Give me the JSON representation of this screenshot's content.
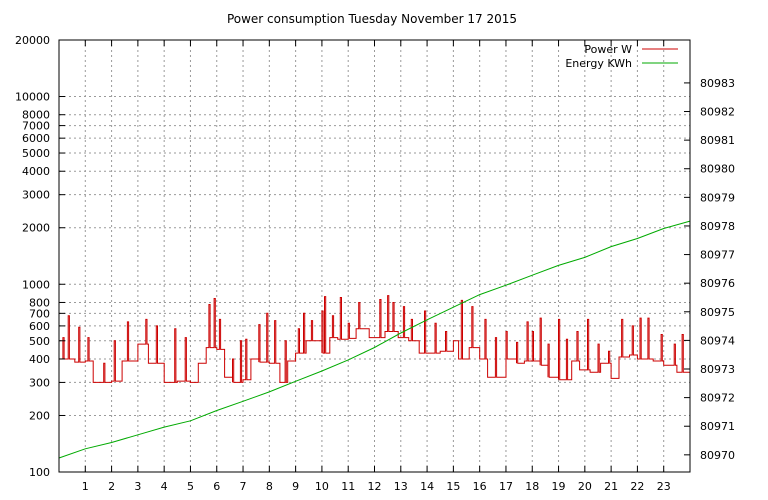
{
  "chart_data": {
    "type": "line",
    "title": "Power consumption Tuesday November 17 2015",
    "xlabel": "",
    "ylabel": "",
    "y2label": "",
    "xlim": [
      0,
      24
    ],
    "x_ticks": [
      1,
      2,
      3,
      4,
      5,
      6,
      7,
      8,
      9,
      10,
      11,
      12,
      13,
      14,
      15,
      16,
      17,
      18,
      19,
      20,
      21,
      22,
      23
    ],
    "ylim": [
      100,
      20000
    ],
    "yscale": "log",
    "y_ticks": [
      100,
      200,
      300,
      400,
      500,
      600,
      700,
      800,
      1000,
      2000,
      3000,
      4000,
      5000,
      6000,
      7000,
      8000,
      10000,
      20000
    ],
    "y2lim": [
      80969.4,
      80984.5
    ],
    "y2_ticks": [
      80970,
      80971,
      80972,
      80973,
      80974,
      80975,
      80976,
      80977,
      80978,
      80979,
      80980,
      80981,
      80982,
      80983
    ],
    "grid": true,
    "legend_position": "top-right",
    "series": [
      {
        "name": "Power W",
        "axis": "y",
        "color": "#cc0000",
        "base": [
          [
            0.0,
            400
          ],
          [
            0.6,
            385
          ],
          [
            1.0,
            390
          ],
          [
            1.3,
            300
          ],
          [
            2.0,
            305
          ],
          [
            2.4,
            390
          ],
          [
            3.0,
            480
          ],
          [
            3.4,
            380
          ],
          [
            4.0,
            300
          ],
          [
            4.5,
            305
          ],
          [
            5.0,
            300
          ],
          [
            5.3,
            380
          ],
          [
            5.6,
            460
          ],
          [
            6.0,
            450
          ],
          [
            6.3,
            320
          ],
          [
            6.6,
            300
          ],
          [
            7.0,
            310
          ],
          [
            7.3,
            400
          ],
          [
            7.6,
            385
          ],
          [
            8.0,
            380
          ],
          [
            8.4,
            300
          ],
          [
            8.7,
            390
          ],
          [
            9.0,
            430
          ],
          [
            9.4,
            500
          ],
          [
            10.0,
            430
          ],
          [
            10.3,
            520
          ],
          [
            10.6,
            510
          ],
          [
            11.0,
            515
          ],
          [
            11.3,
            580
          ],
          [
            11.8,
            520
          ],
          [
            12.4,
            560
          ],
          [
            12.9,
            520
          ],
          [
            13.3,
            500
          ],
          [
            13.7,
            430
          ],
          [
            14.5,
            440
          ],
          [
            15.0,
            500
          ],
          [
            15.2,
            400
          ],
          [
            15.6,
            460
          ],
          [
            16.0,
            400
          ],
          [
            16.3,
            320
          ],
          [
            16.7,
            320
          ],
          [
            17.0,
            400
          ],
          [
            17.4,
            380
          ],
          [
            17.7,
            390
          ],
          [
            18.3,
            370
          ],
          [
            18.6,
            320
          ],
          [
            19.0,
            310
          ],
          [
            19.5,
            390
          ],
          [
            19.8,
            350
          ],
          [
            20.2,
            340
          ],
          [
            20.6,
            380
          ],
          [
            21.0,
            315
          ],
          [
            21.3,
            410
          ],
          [
            21.7,
            420
          ],
          [
            22.0,
            400
          ],
          [
            22.6,
            390
          ],
          [
            23.0,
            370
          ],
          [
            23.5,
            340
          ],
          [
            24.0,
            330
          ]
        ],
        "spikes": [
          [
            0.15,
            520
          ],
          [
            0.35,
            680
          ],
          [
            0.75,
            590
          ],
          [
            1.1,
            520
          ],
          [
            1.7,
            380
          ],
          [
            2.1,
            500
          ],
          [
            2.6,
            630
          ],
          [
            3.3,
            650
          ],
          [
            3.7,
            600
          ],
          [
            4.4,
            580
          ],
          [
            4.8,
            520
          ],
          [
            5.7,
            780
          ],
          [
            5.9,
            840
          ],
          [
            6.1,
            650
          ],
          [
            6.6,
            400
          ],
          [
            6.9,
            500
          ],
          [
            7.1,
            510
          ],
          [
            7.6,
            610
          ],
          [
            7.9,
            700
          ],
          [
            8.2,
            640
          ],
          [
            8.6,
            500
          ],
          [
            9.1,
            580
          ],
          [
            9.3,
            700
          ],
          [
            9.6,
            640
          ],
          [
            10.0,
            720
          ],
          [
            10.1,
            860
          ],
          [
            10.4,
            680
          ],
          [
            10.7,
            850
          ],
          [
            11.0,
            620
          ],
          [
            11.4,
            800
          ],
          [
            12.2,
            830
          ],
          [
            12.5,
            870
          ],
          [
            12.7,
            800
          ],
          [
            13.1,
            760
          ],
          [
            13.4,
            650
          ],
          [
            13.9,
            720
          ],
          [
            14.3,
            620
          ],
          [
            14.7,
            560
          ],
          [
            15.3,
            820
          ],
          [
            15.7,
            760
          ],
          [
            16.2,
            650
          ],
          [
            16.6,
            520
          ],
          [
            17.0,
            560
          ],
          [
            17.4,
            490
          ],
          [
            17.8,
            630
          ],
          [
            18.0,
            560
          ],
          [
            18.3,
            660
          ],
          [
            18.6,
            480
          ],
          [
            19.0,
            650
          ],
          [
            19.3,
            510
          ],
          [
            19.7,
            560
          ],
          [
            20.1,
            650
          ],
          [
            20.5,
            480
          ],
          [
            20.9,
            440
          ],
          [
            21.4,
            650
          ],
          [
            21.8,
            600
          ],
          [
            22.1,
            660
          ],
          [
            22.4,
            660
          ],
          [
            22.9,
            540
          ],
          [
            23.4,
            480
          ],
          [
            23.7,
            540
          ]
        ]
      },
      {
        "name": "Energy KWh",
        "axis": "y2",
        "color": "#00aa00",
        "points": [
          [
            0,
            80969.89
          ],
          [
            1,
            80970.21
          ],
          [
            2,
            80970.43
          ],
          [
            3,
            80970.7
          ],
          [
            4,
            80970.97
          ],
          [
            5,
            80971.19
          ],
          [
            6,
            80971.55
          ],
          [
            7,
            80971.87
          ],
          [
            8,
            80972.2
          ],
          [
            9,
            80972.57
          ],
          [
            10,
            80972.93
          ],
          [
            11,
            80973.32
          ],
          [
            12,
            80973.75
          ],
          [
            13,
            80974.26
          ],
          [
            14,
            80974.72
          ],
          [
            15,
            80975.16
          ],
          [
            16,
            80975.6
          ],
          [
            17,
            80975.93
          ],
          [
            18,
            80976.28
          ],
          [
            19,
            80976.62
          ],
          [
            20,
            80976.9
          ],
          [
            21,
            80977.28
          ],
          [
            22,
            80977.56
          ],
          [
            23,
            80977.91
          ],
          [
            24,
            80978.17
          ]
        ]
      }
    ]
  }
}
